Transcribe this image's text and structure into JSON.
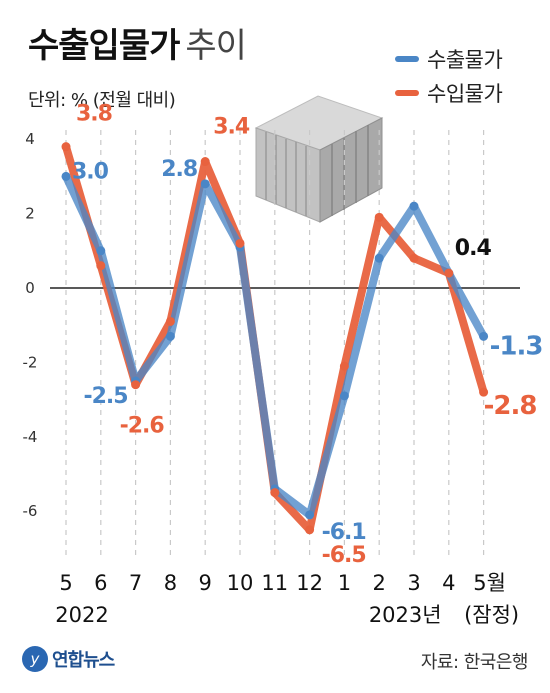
{
  "title_bold": "수출입물가",
  "title_light": "추이",
  "unit": "단위: % (전월 대비)",
  "colors": {
    "export": "#4a86c6",
    "import": "#e8623e",
    "overlap": "#6e4a4a"
  },
  "chart_data": {
    "type": "line",
    "title": "수출입물가 추이",
    "unit": "단위: % (전월 대비)",
    "categories": [
      "5",
      "6",
      "7",
      "8",
      "9",
      "10",
      "11",
      "12",
      "1",
      "2",
      "3",
      "4",
      "5월"
    ],
    "category_sub": [
      "2022",
      "",
      "",
      "",
      "",
      "",
      "",
      "",
      "",
      "",
      "",
      "",
      "(잠정)"
    ],
    "year_labels": [
      {
        "text": "2022",
        "at": 0
      },
      {
        "text": "2023년",
        "at": 9
      }
    ],
    "ylim": [
      -7,
      4.5
    ],
    "yticks": [
      4,
      2,
      0,
      -2,
      -4,
      -6
    ],
    "series": [
      {
        "name": "수출물가",
        "key": "export",
        "values": [
          3.0,
          1.0,
          -2.5,
          -1.3,
          2.8,
          1.1,
          -5.4,
          -6.1,
          -2.9,
          0.8,
          2.2,
          0.4,
          -1.3
        ]
      },
      {
        "name": "수입물가",
        "key": "import",
        "values": [
          3.8,
          0.6,
          -2.6,
          -0.9,
          3.4,
          1.2,
          -5.5,
          -6.5,
          -2.1,
          1.9,
          0.8,
          0.4,
          -2.8
        ]
      }
    ],
    "data_labels": [
      {
        "text": "3.0",
        "series": "export",
        "i": 0
      },
      {
        "text": "3.8",
        "series": "import",
        "i": 0
      },
      {
        "text": "-2.5",
        "series": "export",
        "i": 2
      },
      {
        "text": "-2.6",
        "series": "import",
        "i": 2
      },
      {
        "text": "2.8",
        "series": "export",
        "i": 4
      },
      {
        "text": "3.4",
        "series": "import",
        "i": 4
      },
      {
        "text": "-6.1",
        "series": "export",
        "i": 7
      },
      {
        "text": "-6.5",
        "series": "import",
        "i": 7
      },
      {
        "text": "0.4",
        "series": "both",
        "i": 11
      },
      {
        "text": "-1.3",
        "series": "export",
        "i": 12
      },
      {
        "text": "-2.8",
        "series": "import",
        "i": 12
      }
    ]
  },
  "legend": [
    {
      "label": "수출물가",
      "key": "export"
    },
    {
      "label": "수입물가",
      "key": "import"
    }
  ],
  "icon": "shipping-container-icon",
  "logo": {
    "mark": "y",
    "text": "연합뉴스"
  },
  "source": "자료: 한국은행"
}
